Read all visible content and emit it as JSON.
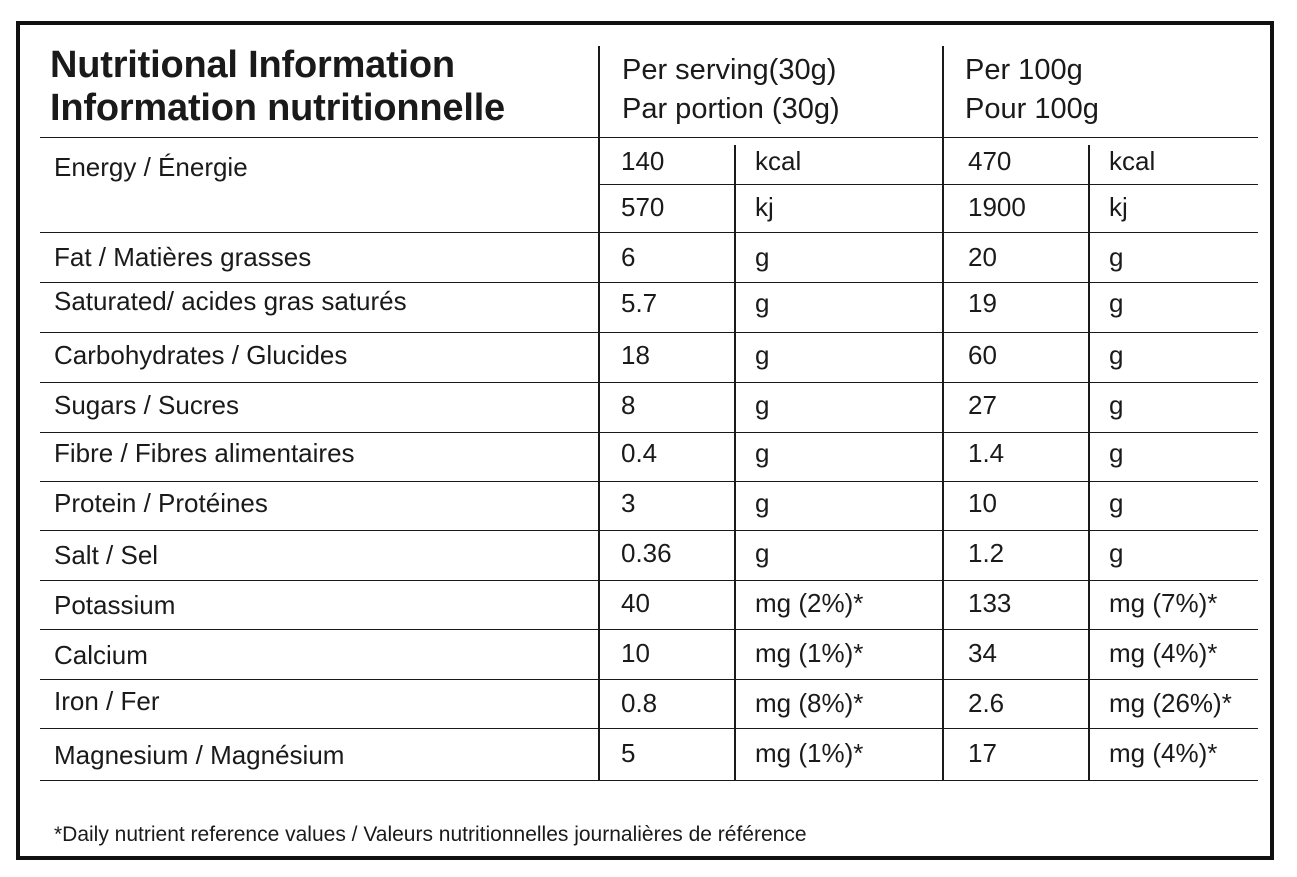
{
  "title": {
    "en": "Nutritional Information",
    "fr": "Information nutritionnelle"
  },
  "columns": {
    "serving_en": "Per serving(30g)",
    "serving_fr": "Par portion (30g)",
    "per100_en": "Per 100g",
    "per100_fr": "Pour 100g"
  },
  "rows": [
    {
      "label": "Energy / Énergie",
      "s_val": "140",
      "s_unit": "kcal",
      "h_val": "470",
      "h_unit": "kcal"
    },
    {
      "label": "",
      "s_val": "570",
      "s_unit": "kj",
      "h_val": "1900",
      "h_unit": "kj"
    },
    {
      "label": "Fat / Matières grasses",
      "s_val": "6",
      "s_unit": "g",
      "h_val": "20",
      "h_unit": "g"
    },
    {
      "label": "Saturated/ acides gras saturés",
      "s_val": "5.7",
      "s_unit": "g",
      "h_val": "19",
      "h_unit": "g"
    },
    {
      "label": "Carbohydrates / Glucides",
      "s_val": "18",
      "s_unit": "g",
      "h_val": "60",
      "h_unit": "g"
    },
    {
      "label": "Sugars / Sucres",
      "s_val": "8",
      "s_unit": "g",
      "h_val": "27",
      "h_unit": "g"
    },
    {
      "label": "Fibre / Fibres alimentaires",
      "s_val": "0.4",
      "s_unit": "g",
      "h_val": "1.4",
      "h_unit": "g"
    },
    {
      "label": "Protein / Protéines",
      "s_val": "3",
      "s_unit": "g",
      "h_val": "10",
      "h_unit": "g"
    },
    {
      "label": "Salt / Sel",
      "s_val": "0.36",
      "s_unit": "g",
      "h_val": "1.2",
      "h_unit": "g"
    },
    {
      "label": "Potassium",
      "s_val": "40",
      "s_unit": "mg (2%)*",
      "h_val": "133",
      "h_unit": "mg (7%)*"
    },
    {
      "label": "Calcium",
      "s_val": "10",
      "s_unit": "mg (1%)*",
      "h_val": "34",
      "h_unit": "mg (4%)*"
    },
    {
      "label": "Iron / Fer",
      "s_val": "0.8",
      "s_unit": "mg (8%)*",
      "h_val": "2.6",
      "h_unit": "mg (26%)*"
    },
    {
      "label": "Magnesium / Magnésium",
      "s_val": "5",
      "s_unit": "mg (1%)*",
      "h_val": "17",
      "h_unit": "mg (4%)*"
    }
  ],
  "footnote": "*Daily nutrient reference values / Valeurs nutritionnelles journalières de référence"
}
